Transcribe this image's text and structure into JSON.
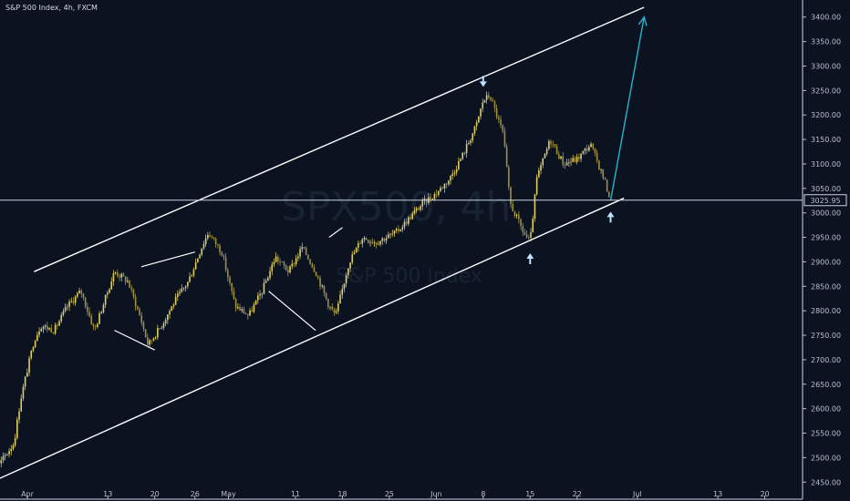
{
  "header": {
    "title": "S&P 500 Index, 4h, FXCM"
  },
  "watermark": {
    "symbol": "SPX500, 4h",
    "name": "S&P 500 Index"
  },
  "price_label": "3025.95",
  "colors": {
    "background": "#0b1220",
    "candle": "#e2cf64",
    "trendline": "#ffffff",
    "arrow_projection": "#27b3c9",
    "marker": "#bfe2ff",
    "axis_text": "#b9c0d0",
    "price_line": "#c9d3e6"
  },
  "chart_data": {
    "type": "line",
    "title": "S&P 500 Index, 4h, FXCM",
    "xlabel": "",
    "ylabel": "",
    "ylim": [
      2430,
      3420
    ],
    "x_tick_labels": [
      "Apr",
      "13",
      "20",
      "26",
      "May",
      "11",
      "18",
      "25",
      "Jun",
      "8",
      "15",
      "22",
      "Jul",
      "13",
      "20",
      "27"
    ],
    "x_tick_dates": [
      "2020-04-01",
      "2020-04-13",
      "2020-04-20",
      "2020-04-26",
      "2020-05-01",
      "2020-05-11",
      "2020-05-18",
      "2020-05-25",
      "2020-06-01",
      "2020-06-08",
      "2020-06-15",
      "2020-06-22",
      "2020-07-01",
      "2020-07-13",
      "2020-07-20",
      "2020-07-27"
    ],
    "y_ticks": [
      2450,
      2500,
      2550,
      2600,
      2650,
      2700,
      2750,
      2800,
      2850,
      2900,
      2950,
      3000,
      3050,
      3100,
      3150,
      3200,
      3250,
      3300,
      3350,
      3400
    ],
    "y_tick_labels": [
      "2450.00",
      "2500.00",
      "2550.00",
      "2600.00",
      "2650.00",
      "2700.00",
      "2750.00",
      "2800.00",
      "2850.00",
      "2900.00",
      "2950.00",
      "3000.00",
      "3050.00",
      "3100.00",
      "3150.00",
      "3200.00",
      "3250.00",
      "3300.00",
      "3350.00",
      "3400.00"
    ],
    "series": [
      {
        "type": "price",
        "points": [
          [
            "2020-03-23",
            2600
          ],
          [
            "2020-03-24",
            2640
          ],
          [
            "2020-03-25",
            2560
          ],
          [
            "2020-03-26",
            2500
          ],
          [
            "2020-03-27",
            2470
          ],
          [
            "2020-03-30",
            2530
          ],
          [
            "2020-03-31",
            2620
          ],
          [
            "2020-04-02",
            2740
          ],
          [
            "2020-04-03",
            2770
          ],
          [
            "2020-04-05",
            2760
          ],
          [
            "2020-04-07",
            2810
          ],
          [
            "2020-04-09",
            2840
          ],
          [
            "2020-04-11",
            2760
          ],
          [
            "2020-04-14",
            2880
          ],
          [
            "2020-04-16",
            2860
          ],
          [
            "2020-04-18",
            2780
          ],
          [
            "2020-04-19",
            2730
          ],
          [
            "2020-04-21",
            2770
          ],
          [
            "2020-04-23",
            2820
          ],
          [
            "2020-04-25",
            2860
          ],
          [
            "2020-04-27",
            2930
          ],
          [
            "2020-04-28",
            2960
          ],
          [
            "2020-04-30",
            2920
          ],
          [
            "2020-05-02",
            2810
          ],
          [
            "2020-05-04",
            2790
          ],
          [
            "2020-05-06",
            2840
          ],
          [
            "2020-05-08",
            2910
          ],
          [
            "2020-05-10",
            2880
          ],
          [
            "2020-05-12",
            2930
          ],
          [
            "2020-05-14",
            2880
          ],
          [
            "2020-05-16",
            2810
          ],
          [
            "2020-05-17",
            2790
          ],
          [
            "2020-05-19",
            2900
          ],
          [
            "2020-05-21",
            2950
          ],
          [
            "2020-05-23",
            2940
          ],
          [
            "2020-05-26",
            2960
          ],
          [
            "2020-05-28",
            2990
          ],
          [
            "2020-05-30",
            3020
          ],
          [
            "2020-06-01",
            3040
          ],
          [
            "2020-06-03",
            3070
          ],
          [
            "2020-06-05",
            3120
          ],
          [
            "2020-06-07",
            3180
          ],
          [
            "2020-06-08",
            3230
          ],
          [
            "2020-06-09",
            3240
          ],
          [
            "2020-06-11",
            3160
          ],
          [
            "2020-06-12",
            3020
          ],
          [
            "2020-06-14",
            2960
          ],
          [
            "2020-06-15",
            2940
          ],
          [
            "2020-06-16",
            3070
          ],
          [
            "2020-06-18",
            3150
          ],
          [
            "2020-06-20",
            3100
          ],
          [
            "2020-06-22",
            3110
          ],
          [
            "2020-06-24",
            3140
          ],
          [
            "2020-06-26",
            3070
          ],
          [
            "2020-06-27",
            3026
          ]
        ]
      }
    ],
    "annotations": {
      "channel_upper": [
        [
          "2020-04-02",
          2880
        ],
        [
          "2020-07-02",
          3420
        ]
      ],
      "channel_lower": [
        [
          "2020-03-25",
          2440
        ],
        [
          "2020-06-29",
          3030
        ]
      ],
      "wedges": [
        {
          "upper": [
            [
              "2020-04-18",
              2890
            ],
            [
              "2020-04-26",
              2920
            ]
          ],
          "lower": [
            [
              "2020-04-14",
              2760
            ],
            [
              "2020-04-20",
              2720
            ]
          ]
        },
        {
          "upper": [
            [
              "2020-05-16",
              2950
            ],
            [
              "2020-05-18",
              2970
            ]
          ],
          "lower": [
            [
              "2020-05-07",
              2840
            ],
            [
              "2020-05-14",
              2760
            ]
          ]
        }
      ],
      "projection_arrow": [
        [
          "2020-06-27",
          3025
        ],
        [
          "2020-07-02",
          3400
        ]
      ],
      "markers": [
        {
          "date": "2020-03-25",
          "price": 2440,
          "dir": "up"
        },
        {
          "date": "2020-06-08",
          "price": 3250,
          "dir": "down"
        },
        {
          "date": "2020-06-15",
          "price": 2925,
          "dir": "up"
        },
        {
          "date": "2020-06-27",
          "price": 3010,
          "dir": "up"
        }
      ],
      "last_price": 3025.95
    }
  }
}
